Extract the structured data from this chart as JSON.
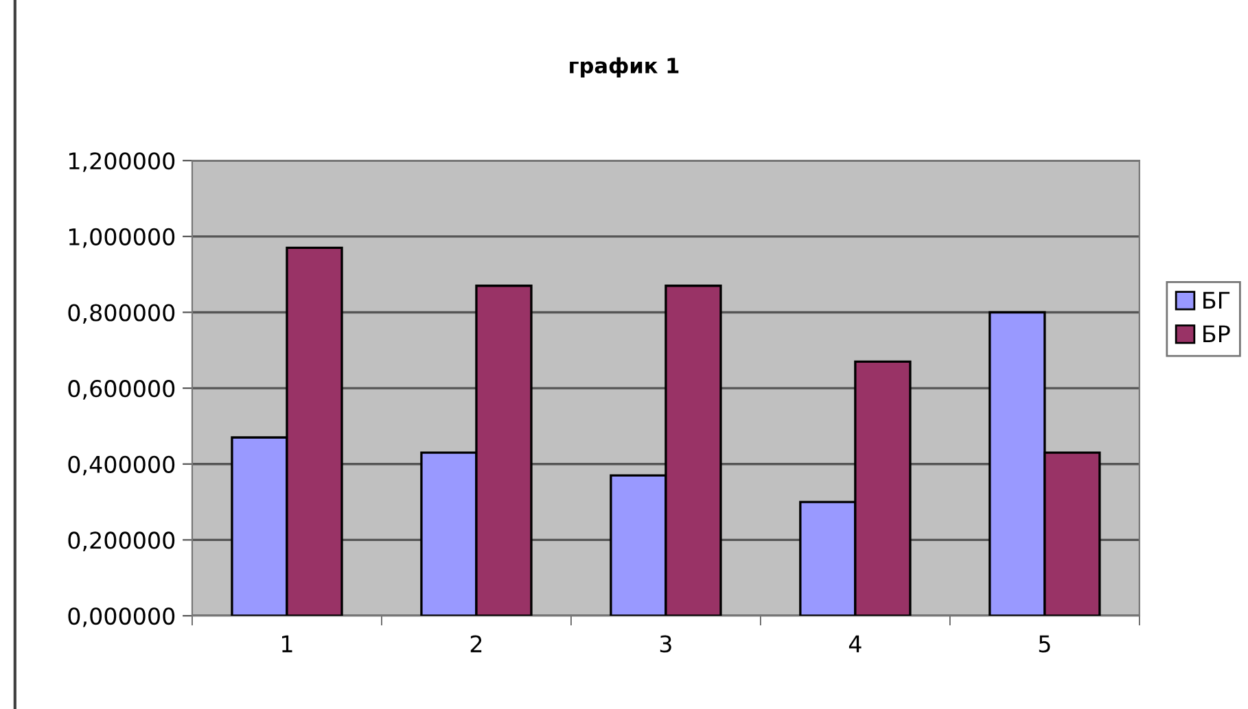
{
  "chart_data": {
    "type": "bar",
    "title": "график 1",
    "categories": [
      "1",
      "2",
      "3",
      "4",
      "5"
    ],
    "series": [
      {
        "name": "БГ",
        "color": "#9999ff",
        "values": [
          0.47,
          0.43,
          0.37,
          0.3,
          0.8
        ]
      },
      {
        "name": "БР",
        "color": "#993366",
        "values": [
          0.97,
          0.87,
          0.87,
          0.67,
          0.43
        ]
      }
    ],
    "ylim": [
      0,
      1.2
    ],
    "yticks": [
      {
        "value": 0,
        "label": "0,000000"
      },
      {
        "value": 0.2,
        "label": "0,200000"
      },
      {
        "value": 0.4,
        "label": "0,400000"
      },
      {
        "value": 0.6,
        "label": "0,600000"
      },
      {
        "value": 0.8,
        "label": "0,800000"
      },
      {
        "value": 1.0,
        "label": "1,000000"
      },
      {
        "value": 1.2,
        "label": "1,200000"
      }
    ],
    "grid": "y",
    "legend": "right"
  }
}
